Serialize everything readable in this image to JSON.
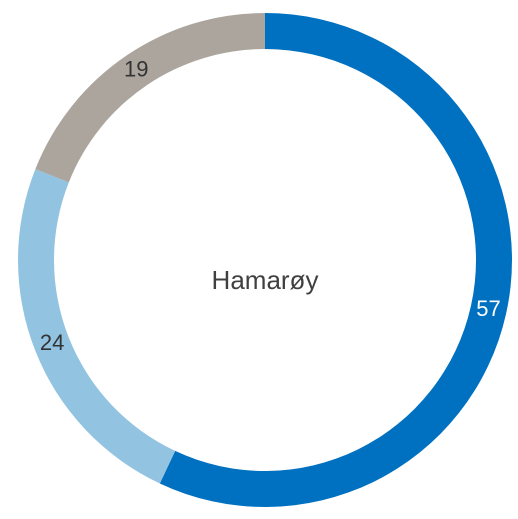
{
  "chart_data": {
    "type": "donut",
    "center_label": "Hamarøy",
    "values": [
      57,
      24,
      19
    ],
    "colors": [
      "#0070c0",
      "#92c4e1",
      "#aca59e"
    ],
    "label_colors": [
      "#ffffff",
      "#333333",
      "#333333"
    ]
  }
}
